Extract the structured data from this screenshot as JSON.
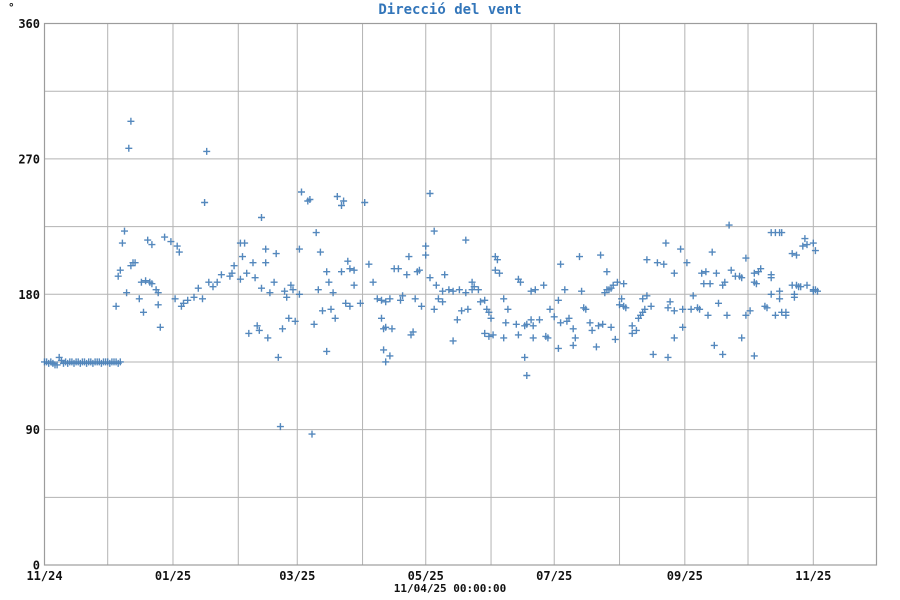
{
  "title": {
    "text": "Direcció del vent",
    "color": "#3376ba"
  },
  "y_axis_unit": "°",
  "footer": {
    "text": "11/04/25 00:00:00"
  },
  "chart_data": {
    "type": "scatter",
    "title": "Direcció del vent",
    "ylabel": "°",
    "ylim": [
      0,
      360
    ],
    "y_tick_labels": [
      0,
      90,
      180,
      270,
      360
    ],
    "y_grid_step": 45,
    "grid": true,
    "legend": "none",
    "grid_color": "#b3b3b3",
    "frame_color": "#9c9c9c",
    "marker": {
      "shape": "plus",
      "size": 7,
      "color": "#3c78b4"
    },
    "x_unit": "days since 11/04/24 00:00",
    "x_range_days": [
      0,
      395
    ],
    "x_grid_days": [
      0,
      30,
      61,
      92,
      120,
      151,
      181,
      212,
      242,
      273,
      304,
      334,
      365,
      395
    ],
    "x_ticks": [
      {
        "day": 0,
        "label": "11/24"
      },
      {
        "day": 61,
        "label": "01/25"
      },
      {
        "day": 120,
        "label": "03/25"
      },
      {
        "day": 181,
        "label": "05/25"
      },
      {
        "day": 242,
        "label": "07/25"
      },
      {
        "day": 304,
        "label": "09/25"
      },
      {
        "day": 365,
        "label": "11/25"
      }
    ],
    "points": [
      [
        0,
        135
      ],
      [
        1,
        135
      ],
      [
        2,
        134
      ],
      [
        3,
        135
      ],
      [
        4,
        134
      ],
      [
        5,
        133
      ],
      [
        6,
        133
      ],
      [
        7,
        138
      ],
      [
        8,
        136
      ],
      [
        9,
        134
      ],
      [
        10,
        135
      ],
      [
        11,
        134
      ],
      [
        12,
        135
      ],
      [
        13,
        135
      ],
      [
        14,
        134
      ],
      [
        15,
        135
      ],
      [
        16,
        135
      ],
      [
        17,
        134
      ],
      [
        18,
        135
      ],
      [
        19,
        135
      ],
      [
        20,
        134
      ],
      [
        21,
        135
      ],
      [
        22,
        135
      ],
      [
        23,
        134
      ],
      [
        24,
        135
      ],
      [
        25,
        135
      ],
      [
        26,
        135
      ],
      [
        27,
        134
      ],
      [
        28,
        135
      ],
      [
        29,
        135
      ],
      [
        30,
        135
      ],
      [
        31,
        134
      ],
      [
        32,
        135
      ],
      [
        33,
        135
      ],
      [
        34,
        135
      ],
      [
        35,
        134
      ],
      [
        36,
        135
      ],
      [
        34,
        172
      ],
      [
        35,
        192
      ],
      [
        36,
        196
      ],
      [
        37,
        214
      ],
      [
        38,
        222
      ],
      [
        39,
        181
      ],
      [
        40,
        277
      ],
      [
        41,
        295
      ],
      [
        41,
        199
      ],
      [
        42,
        201
      ],
      [
        43,
        201
      ],
      [
        45,
        177
      ],
      [
        46,
        188
      ],
      [
        47,
        168
      ],
      [
        48,
        189
      ],
      [
        49,
        216
      ],
      [
        50,
        188
      ],
      [
        51,
        213
      ],
      [
        51,
        187
      ],
      [
        53,
        183
      ],
      [
        54,
        181
      ],
      [
        54,
        173
      ],
      [
        55,
        158
      ],
      [
        57,
        218
      ],
      [
        60,
        215
      ],
      [
        62,
        177
      ],
      [
        63,
        212
      ],
      [
        64,
        208
      ],
      [
        65,
        172
      ],
      [
        66,
        174
      ],
      [
        68,
        176
      ],
      [
        71,
        178
      ],
      [
        73,
        184
      ],
      [
        75,
        177
      ],
      [
        76,
        241
      ],
      [
        77,
        275
      ],
      [
        78,
        188
      ],
      [
        80,
        185
      ],
      [
        82,
        188
      ],
      [
        84,
        193
      ],
      [
        88,
        192
      ],
      [
        89,
        194
      ],
      [
        90,
        199
      ],
      [
        93,
        214
      ],
      [
        94,
        205
      ],
      [
        93,
        190
      ],
      [
        95,
        214
      ],
      [
        96,
        194
      ],
      [
        97,
        154
      ],
      [
        99,
        201
      ],
      [
        100,
        191
      ],
      [
        101,
        159
      ],
      [
        102,
        156
      ],
      [
        103,
        231
      ],
      [
        103,
        184
      ],
      [
        105,
        210
      ],
      [
        105,
        201
      ],
      [
        106,
        151
      ],
      [
        107,
        181
      ],
      [
        109,
        188
      ],
      [
        110,
        207
      ],
      [
        111,
        138
      ],
      [
        112,
        92
      ],
      [
        113,
        157
      ],
      [
        114,
        182
      ],
      [
        115,
        178
      ],
      [
        116,
        164
      ],
      [
        117,
        186
      ],
      [
        118,
        183
      ],
      [
        119,
        162
      ],
      [
        121,
        180
      ],
      [
        121,
        210
      ],
      [
        122,
        248
      ],
      [
        125,
        242
      ],
      [
        126,
        243
      ],
      [
        127,
        87
      ],
      [
        128,
        160
      ],
      [
        129,
        221
      ],
      [
        130,
        183
      ],
      [
        131,
        208
      ],
      [
        132,
        169
      ],
      [
        134,
        195
      ],
      [
        134,
        142
      ],
      [
        135,
        188
      ],
      [
        136,
        170
      ],
      [
        137,
        181
      ],
      [
        138,
        164
      ],
      [
        139,
        245
      ],
      [
        141,
        239
      ],
      [
        141,
        195
      ],
      [
        142,
        242
      ],
      [
        143,
        174
      ],
      [
        144,
        202
      ],
      [
        145,
        197
      ],
      [
        145,
        172
      ],
      [
        147,
        196
      ],
      [
        147,
        186
      ],
      [
        150,
        174
      ],
      [
        152,
        241
      ],
      [
        154,
        200
      ],
      [
        156,
        188
      ],
      [
        158,
        177
      ],
      [
        160,
        164
      ],
      [
        160,
        176
      ],
      [
        161,
        157
      ],
      [
        161,
        143
      ],
      [
        162,
        175
      ],
      [
        162,
        158
      ],
      [
        162,
        135
      ],
      [
        164,
        177
      ],
      [
        164,
        139
      ],
      [
        165,
        157
      ],
      [
        166,
        197
      ],
      [
        168,
        197
      ],
      [
        169,
        176
      ],
      [
        170,
        179
      ],
      [
        172,
        193
      ],
      [
        173,
        205
      ],
      [
        174,
        153
      ],
      [
        175,
        155
      ],
      [
        176,
        177
      ],
      [
        177,
        195
      ],
      [
        178,
        196
      ],
      [
        179,
        172
      ],
      [
        181,
        212
      ],
      [
        181,
        206
      ],
      [
        183,
        247
      ],
      [
        183,
        191
      ],
      [
        185,
        222
      ],
      [
        185,
        170
      ],
      [
        186,
        186
      ],
      [
        187,
        177
      ],
      [
        189,
        182
      ],
      [
        189,
        175
      ],
      [
        190,
        193
      ],
      [
        192,
        183
      ],
      [
        194,
        182
      ],
      [
        194,
        149
      ],
      [
        196,
        163
      ],
      [
        197,
        183
      ],
      [
        198,
        169
      ],
      [
        200,
        216
      ],
      [
        200,
        181
      ],
      [
        201,
        170
      ],
      [
        203,
        188
      ],
      [
        203,
        183
      ],
      [
        204,
        185
      ],
      [
        206,
        183
      ],
      [
        207,
        175
      ],
      [
        209,
        176
      ],
      [
        209,
        154
      ],
      [
        210,
        170
      ],
      [
        211,
        168
      ],
      [
        211,
        152
      ],
      [
        212,
        164
      ],
      [
        213,
        153
      ],
      [
        214,
        205
      ],
      [
        214,
        196
      ],
      [
        215,
        203
      ],
      [
        216,
        194
      ],
      [
        218,
        177
      ],
      [
        218,
        151
      ],
      [
        219,
        161
      ],
      [
        220,
        170
      ],
      [
        224,
        160
      ],
      [
        225,
        190
      ],
      [
        225,
        153
      ],
      [
        226,
        188
      ],
      [
        228,
        159
      ],
      [
        228,
        138
      ],
      [
        229,
        160
      ],
      [
        229,
        126
      ],
      [
        231,
        182
      ],
      [
        231,
        163
      ],
      [
        232,
        159
      ],
      [
        232,
        151
      ],
      [
        233,
        183
      ],
      [
        235,
        163
      ],
      [
        237,
        186
      ],
      [
        238,
        152
      ],
      [
        239,
        151
      ],
      [
        240,
        170
      ],
      [
        242,
        165
      ],
      [
        244,
        176
      ],
      [
        244,
        144
      ],
      [
        245,
        200
      ],
      [
        245,
        161
      ],
      [
        247,
        183
      ],
      [
        248,
        162
      ],
      [
        249,
        164
      ],
      [
        251,
        157
      ],
      [
        251,
        146
      ],
      [
        252,
        151
      ],
      [
        254,
        205
      ],
      [
        255,
        182
      ],
      [
        256,
        171
      ],
      [
        257,
        170
      ],
      [
        259,
        161
      ],
      [
        260,
        156
      ],
      [
        262,
        145
      ],
      [
        263,
        159
      ],
      [
        264,
        206
      ],
      [
        265,
        160
      ],
      [
        266,
        181
      ],
      [
        267,
        195
      ],
      [
        267,
        183
      ],
      [
        268,
        183
      ],
      [
        269,
        184
      ],
      [
        269,
        158
      ],
      [
        270,
        186
      ],
      [
        271,
        150
      ],
      [
        272,
        188
      ],
      [
        273,
        173
      ],
      [
        274,
        177
      ],
      [
        275,
        187
      ],
      [
        275,
        172
      ],
      [
        276,
        171
      ],
      [
        279,
        159
      ],
      [
        279,
        154
      ],
      [
        281,
        156
      ],
      [
        282,
        164
      ],
      [
        283,
        166
      ],
      [
        284,
        168
      ],
      [
        284,
        177
      ],
      [
        285,
        170
      ],
      [
        286,
        203
      ],
      [
        286,
        179
      ],
      [
        288,
        172
      ],
      [
        289,
        140
      ],
      [
        291,
        201
      ],
      [
        294,
        200
      ],
      [
        295,
        214
      ],
      [
        296,
        138
      ],
      [
        296,
        171
      ],
      [
        297,
        175
      ],
      [
        299,
        194
      ],
      [
        299,
        169
      ],
      [
        299,
        151
      ],
      [
        302,
        210
      ],
      [
        303,
        170
      ],
      [
        303,
        158
      ],
      [
        305,
        201
      ],
      [
        307,
        170
      ],
      [
        308,
        179
      ],
      [
        310,
        171
      ],
      [
        311,
        170
      ],
      [
        312,
        194
      ],
      [
        313,
        187
      ],
      [
        314,
        195
      ],
      [
        315,
        166
      ],
      [
        316,
        187
      ],
      [
        317,
        208
      ],
      [
        318,
        146
      ],
      [
        319,
        194
      ],
      [
        320,
        174
      ],
      [
        322,
        186
      ],
      [
        322,
        140
      ],
      [
        323,
        188
      ],
      [
        324,
        166
      ],
      [
        325,
        226
      ],
      [
        326,
        196
      ],
      [
        328,
        192
      ],
      [
        330,
        192
      ],
      [
        331,
        191
      ],
      [
        331,
        151
      ],
      [
        333,
        204
      ],
      [
        333,
        166
      ],
      [
        335,
        169
      ],
      [
        337,
        194
      ],
      [
        337,
        188
      ],
      [
        337,
        139
      ],
      [
        338,
        187
      ],
      [
        339,
        195
      ],
      [
        340,
        197
      ],
      [
        342,
        172
      ],
      [
        343,
        171
      ],
      [
        345,
        221
      ],
      [
        345,
        191
      ],
      [
        345,
        193
      ],
      [
        345,
        180
      ],
      [
        347,
        221
      ],
      [
        347,
        166
      ],
      [
        349,
        221
      ],
      [
        349,
        182
      ],
      [
        349,
        177
      ],
      [
        350,
        221
      ],
      [
        350,
        168
      ],
      [
        352,
        168
      ],
      [
        352,
        166
      ],
      [
        355,
        207
      ],
      [
        355,
        186
      ],
      [
        356,
        178
      ],
      [
        356,
        180
      ],
      [
        357,
        206
      ],
      [
        357,
        186
      ],
      [
        358,
        185
      ],
      [
        359,
        185
      ],
      [
        360,
        212
      ],
      [
        361,
        217
      ],
      [
        362,
        213
      ],
      [
        362,
        186
      ],
      [
        365,
        214
      ],
      [
        365,
        183
      ],
      [
        365,
        182
      ],
      [
        366,
        209
      ],
      [
        366,
        183
      ],
      [
        367,
        182
      ]
    ]
  }
}
